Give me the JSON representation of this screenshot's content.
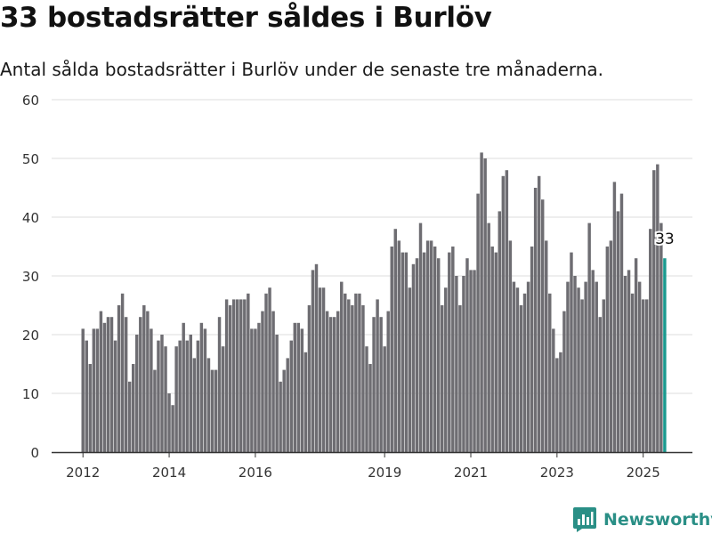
{
  "title": "33 bostadsrätter såldes i Burlöv",
  "subtitle": "Antal sålda bostadsrätter i Burlöv under de senaste tre månaderna.",
  "brand": "Newsworthy",
  "colors": {
    "bar": "#6e6d72",
    "highlight": "#1a9a8f",
    "grid": "#dddddd",
    "axis": "#333333",
    "brand": "#2a8f86"
  },
  "chart_data": {
    "type": "bar",
    "ylim": [
      0,
      60
    ],
    "yticks": [
      0,
      10,
      20,
      30,
      40,
      50,
      60
    ],
    "xticks": [
      {
        "label": "2012",
        "index": 0
      },
      {
        "label": "2014",
        "index": 24
      },
      {
        "label": "2016",
        "index": 48
      },
      {
        "label": "2019",
        "index": 84
      },
      {
        "label": "2021",
        "index": 108
      },
      {
        "label": "2023",
        "index": 132
      },
      {
        "label": "2025",
        "index": 156
      }
    ],
    "values": [
      21,
      19,
      15,
      21,
      21,
      24,
      22,
      23,
      23,
      19,
      25,
      27,
      23,
      12,
      15,
      20,
      23,
      25,
      24,
      21,
      14,
      19,
      20,
      18,
      10,
      8,
      18,
      19,
      22,
      19,
      20,
      16,
      19,
      22,
      21,
      16,
      14,
      14,
      23,
      18,
      26,
      25,
      26,
      26,
      26,
      26,
      27,
      21,
      21,
      22,
      24,
      27,
      28,
      24,
      20,
      12,
      14,
      16,
      19,
      22,
      22,
      21,
      17,
      25,
      31,
      32,
      28,
      28,
      24,
      23,
      23,
      24,
      29,
      27,
      26,
      25,
      27,
      27,
      25,
      18,
      15,
      23,
      26,
      23,
      18,
      24,
      35,
      38,
      36,
      34,
      34,
      28,
      32,
      33,
      39,
      34,
      36,
      36,
      35,
      33,
      25,
      28,
      34,
      35,
      30,
      25,
      30,
      33,
      31,
      31,
      44,
      51,
      50,
      39,
      35,
      34,
      41,
      47,
      48,
      36,
      29,
      28,
      25,
      27,
      29,
      35,
      45,
      47,
      43,
      36,
      27,
      21,
      16,
      17,
      24,
      29,
      34,
      30,
      28,
      26,
      29,
      39,
      31,
      29,
      23,
      26,
      35,
      36,
      46,
      41,
      44,
      30,
      31,
      27,
      33,
      29,
      26,
      26,
      38,
      48,
      49,
      39,
      33
    ],
    "highlight_index": 162,
    "highlight_label": "33"
  }
}
